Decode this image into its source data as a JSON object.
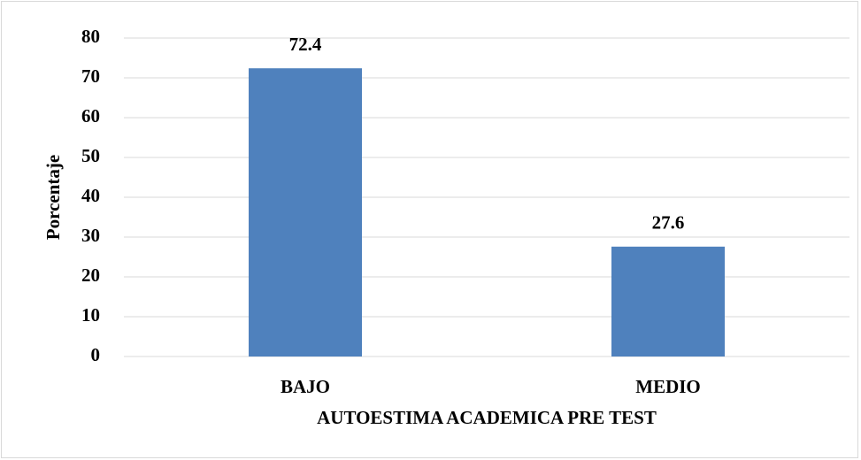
{
  "chart_data": {
    "type": "bar",
    "x_label": "AUTOESTIMA ACADEMICA PRE TEST",
    "y_label": "Porcentaje",
    "categories": [
      "BAJO",
      "MEDIO"
    ],
    "values": [
      72.4,
      27.6
    ],
    "color": "#4f81bd",
    "ylim": [
      0,
      80
    ],
    "yticks": [
      0,
      10,
      20,
      30,
      40,
      50,
      60,
      70,
      80
    ],
    "grid": true
  }
}
